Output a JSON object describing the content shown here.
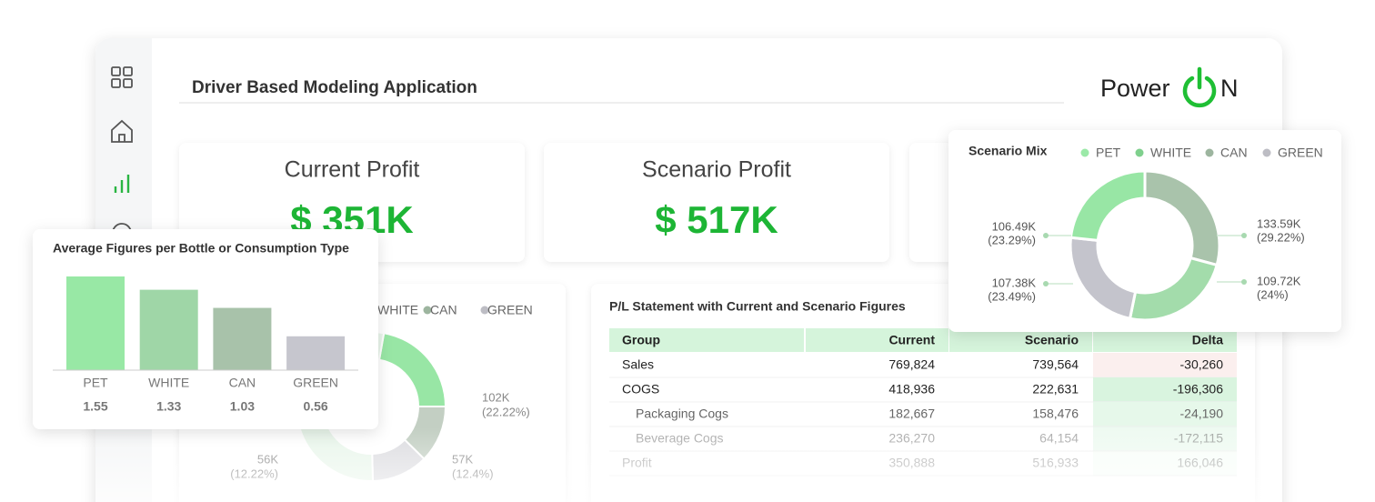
{
  "app": {
    "title": "Driver Based Modeling Application",
    "logo_left": "Power",
    "logo_right": "N"
  },
  "kpis": [
    {
      "label": "Current Profit",
      "value": "$ 351K"
    },
    {
      "label": "Scenario Profit",
      "value": "$ 517K"
    }
  ],
  "bar_chart": {
    "title": "Average Figures per Bottle or Consumption Type",
    "categories": [
      "PET",
      "WHITE",
      "CAN",
      "GREEN"
    ],
    "values": [
      1.55,
      1.33,
      1.03,
      0.56
    ],
    "colors": [
      "#98e8a5",
      "#9fd6a7",
      "#a8c2aa",
      "#c6c6ce"
    ]
  },
  "background_mix": {
    "legend": [
      "WHITE",
      "CAN",
      "GREEN"
    ],
    "labels": [
      {
        "value": 102,
        "value_label": "102K",
        "percent": 22.22,
        "percent_label": "(22.22%)"
      },
      {
        "value": 57,
        "value_label": "57K",
        "percent": 12.4,
        "percent_label": "(12.4%)"
      },
      {
        "value": 56,
        "value_label": "56K",
        "percent": 12.22,
        "percent_label": "(12.22%)"
      }
    ]
  },
  "scenario_mix": {
    "title": "Scenario Mix",
    "series": [
      {
        "name": "PET",
        "color": "#98e6a5",
        "value": 106.49,
        "value_label": "106.49K",
        "percent": 23.29,
        "percent_label": "(23.29%)"
      },
      {
        "name": "WHITE",
        "color": "#a3dcab",
        "value": 109.72,
        "value_label": "109.72K",
        "percent": 24,
        "percent_label": "(24%)"
      },
      {
        "name": "CAN",
        "color": "#a9c3ab",
        "value": 133.59,
        "value_label": "133.59K",
        "percent": 29.22,
        "percent_label": "(29.22%)"
      },
      {
        "name": "GREEN",
        "color": "#c4c4cc",
        "value": 107.38,
        "value_label": "107.38K",
        "percent": 23.49,
        "percent_label": "(23.49%)"
      }
    ]
  },
  "table": {
    "title": "P/L Statement with Current and Scenario Figures",
    "header": [
      "Group",
      "Current",
      "Scenario",
      "Delta"
    ],
    "rows": [
      [
        "Sales",
        "769,824",
        "739,564",
        "-30,260"
      ],
      [
        "COGS",
        "418,936",
        "222,631",
        "-196,306"
      ],
      [
        "Packaging Cogs",
        "182,667",
        "158,476",
        "-24,190"
      ],
      [
        "Beverage Cogs",
        "236,270",
        "64,154",
        "-172,115"
      ],
      [
        "Profit",
        "350,888",
        "516,933",
        "166,046"
      ]
    ]
  }
}
